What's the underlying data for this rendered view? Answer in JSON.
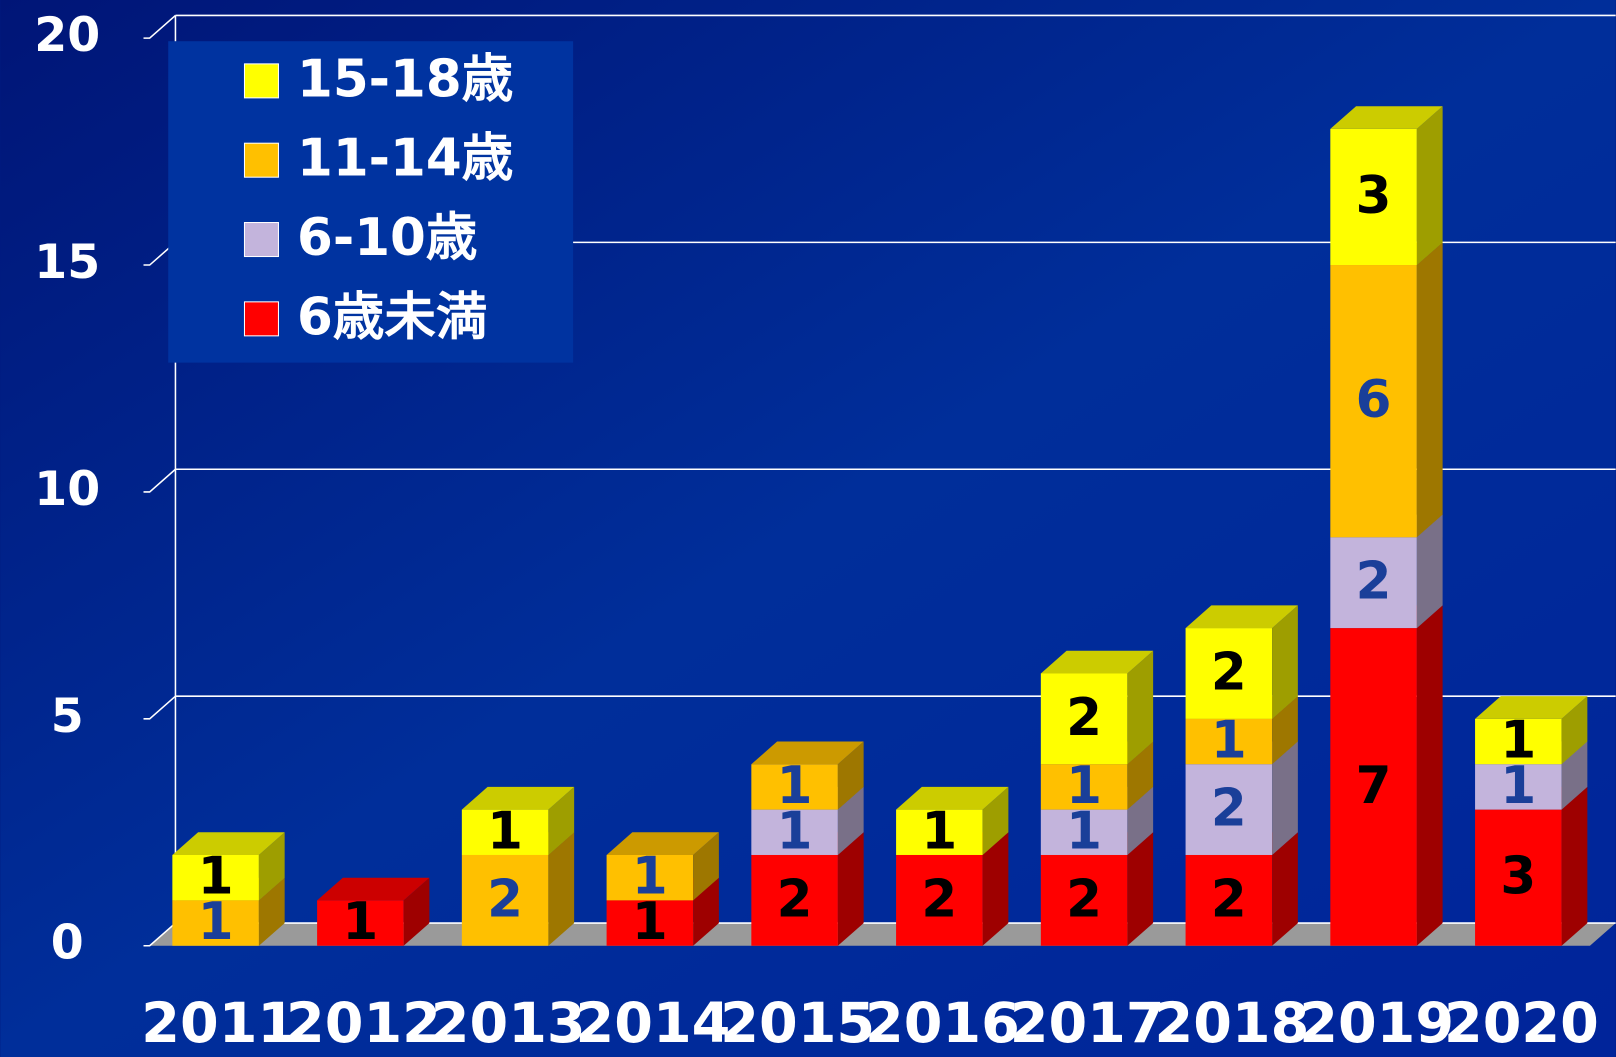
{
  "chart_data": {
    "type": "bar",
    "stacked": true,
    "categories": [
      "2011",
      "2012",
      "2013",
      "2014",
      "2015",
      "2016",
      "2017",
      "2018",
      "2019",
      "2020"
    ],
    "series": [
      {
        "name": "6歳未満",
        "color": "#ff0000",
        "label_color": "#000000",
        "values": [
          0,
          1,
          0,
          1,
          2,
          2,
          2,
          2,
          7,
          3
        ]
      },
      {
        "name": "6-10歳",
        "color": "#c3b4dc",
        "label_color": "#1a3f99",
        "values": [
          0,
          0,
          0,
          0,
          1,
          0,
          1,
          2,
          2,
          1
        ]
      },
      {
        "name": "11-14歳",
        "color": "#ffc000",
        "label_color": "#1a3f99",
        "values": [
          1,
          0,
          2,
          1,
          1,
          0,
          1,
          1,
          6,
          0
        ]
      },
      {
        "name": "15-18歳",
        "color": "#ffff00",
        "label_color": "#000000",
        "values": [
          1,
          0,
          1,
          0,
          0,
          1,
          2,
          2,
          3,
          1
        ]
      }
    ],
    "ylim": [
      0,
      20
    ],
    "yticks": [
      0,
      5,
      10,
      15,
      20
    ],
    "grid": true,
    "legend": "upper left",
    "legend_order": "reversed"
  }
}
